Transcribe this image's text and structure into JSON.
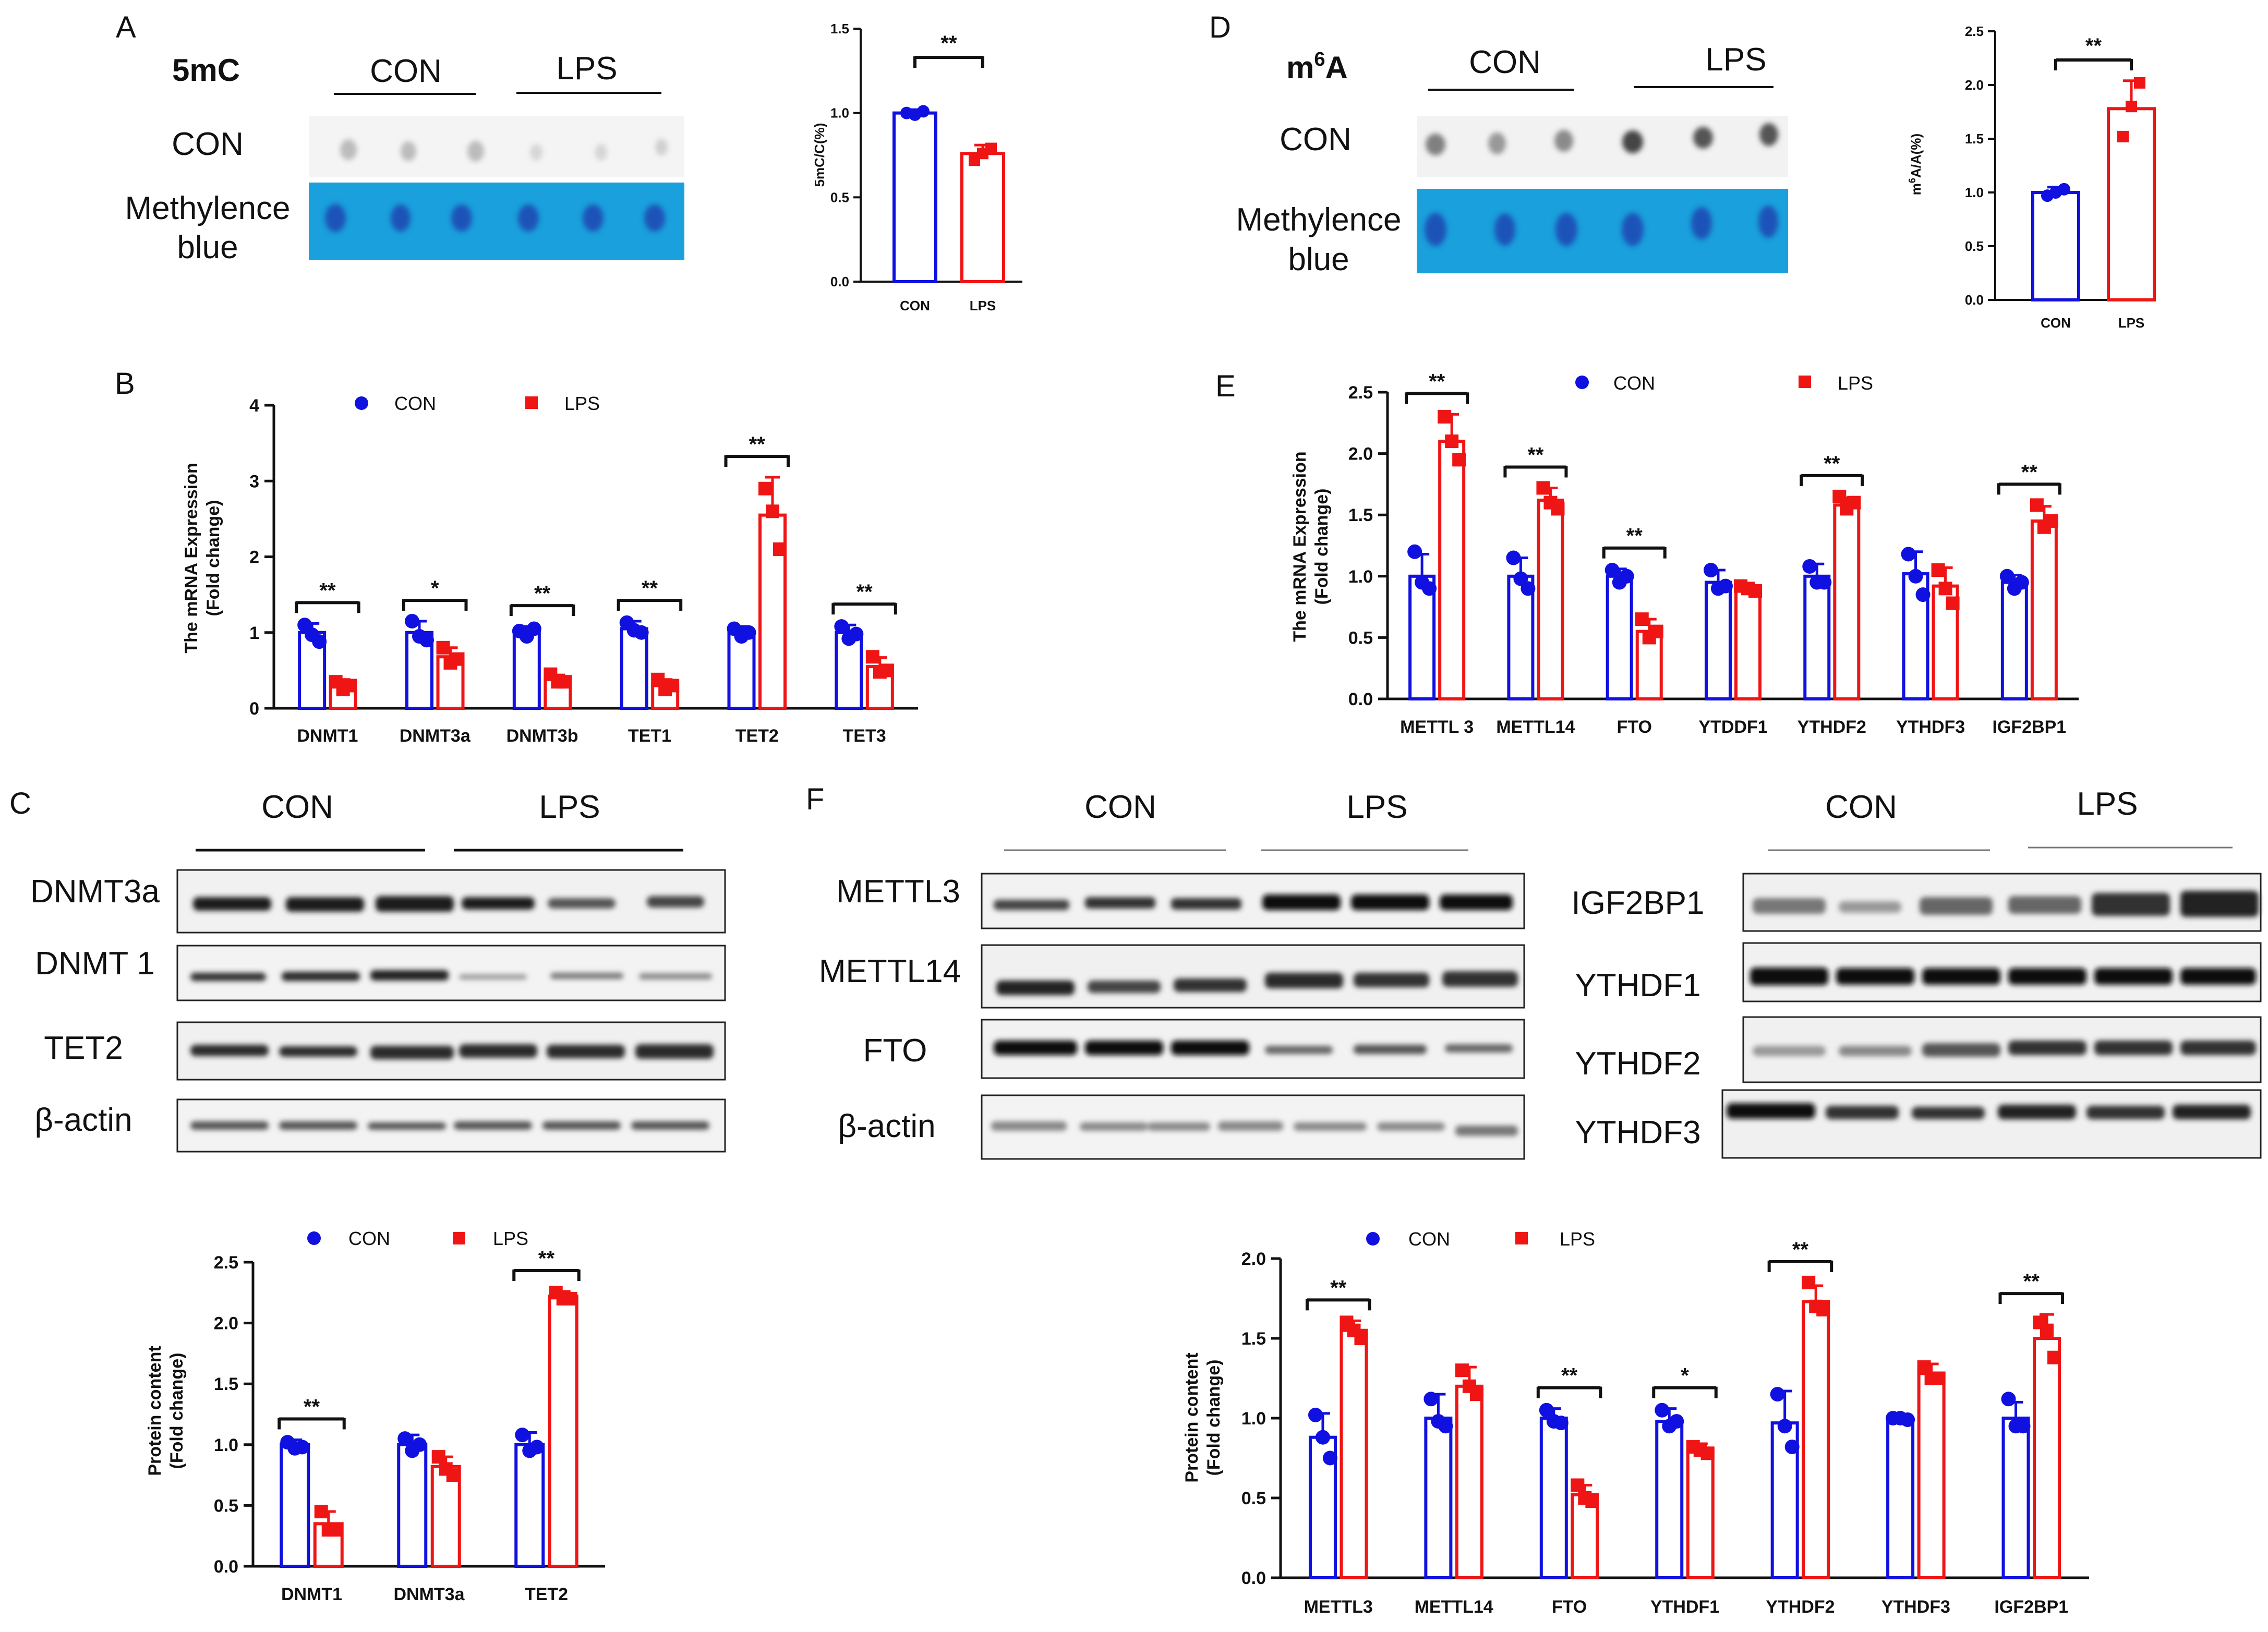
{
  "colors": {
    "con": "#1010e0",
    "lps": "#f01515",
    "methylene": "#1aa0dc",
    "axis": "#111111"
  },
  "panels": {
    "A": {
      "letter": "A",
      "mark": "5mC",
      "group_con": "CON",
      "group_lps": "LPS",
      "row1": "CON",
      "row2a": "Methylence",
      "row2b": "blue"
    },
    "D": {
      "letter": "D",
      "mark_base": "m",
      "mark_sup": "6",
      "mark_end": "A",
      "group_con": "CON",
      "group_lps": "LPS",
      "row1": "CON",
      "row2a": "Methylence",
      "row2b": "blue"
    },
    "B": {
      "letter": "B"
    },
    "E": {
      "letter": "E"
    },
    "C": {
      "letter": "C",
      "group_con": "CON",
      "group_lps": "LPS",
      "rows": [
        "DNMT3a",
        "DNMT 1",
        "TET2",
        "β-actin"
      ]
    },
    "F": {
      "letter": "F",
      "group_con": "CON",
      "group_lps": "LPS",
      "rows_left": [
        "METTL3",
        "METTL14",
        "FTO",
        "β-actin"
      ],
      "group_con_r": "CON",
      "group_lps_r": "LPS",
      "rows_right": [
        "IGF2BP1",
        "YTHDF1",
        "YTHDF2",
        "YTHDF3"
      ]
    }
  },
  "legend": {
    "con": "CON",
    "lps": "LPS"
  },
  "chart_data": [
    {
      "id": "A-bar",
      "type": "bar",
      "title": "",
      "ylabel": "5mC/C(%)",
      "xlabel": "",
      "ylim": [
        0,
        1.5
      ],
      "yticks": [
        "0.0",
        "0.5",
        "1.0",
        "1.5"
      ],
      "yticks_val": [
        0,
        0.5,
        1.0,
        1.5
      ],
      "categories": [
        "CON",
        "LPS"
      ],
      "values": [
        1.0,
        0.76
      ],
      "errors": [
        0.02,
        0.05
      ],
      "points": [
        [
          1.0,
          0.99,
          1.01
        ],
        [
          0.72,
          0.76,
          0.79
        ]
      ],
      "sig": [
        {
          "label": "**",
          "from": 0,
          "to": 1
        }
      ]
    },
    {
      "id": "D-bar",
      "type": "bar",
      "title": "",
      "ylabel": "m6A/A(%)",
      "xlabel": "",
      "ylim": [
        0,
        2.5
      ],
      "yticks": [
        "0.0",
        "0.5",
        "1.0",
        "1.5",
        "2.0",
        "2.5"
      ],
      "yticks_val": [
        0,
        0.5,
        1.0,
        1.5,
        2.0,
        2.5
      ],
      "categories": [
        "CON",
        "LPS"
      ],
      "values": [
        1.0,
        1.78
      ],
      "errors": [
        0.05,
        0.26
      ],
      "points": [
        [
          0.97,
          1.0,
          1.03
        ],
        [
          1.52,
          1.8,
          2.02
        ]
      ],
      "sig": [
        {
          "label": "**",
          "from": 0,
          "to": 1
        }
      ]
    },
    {
      "id": "B-chart",
      "type": "bar",
      "title": "",
      "ylabel": "The mRNA Expression (Fold change)",
      "xlabel": "",
      "ylim": [
        0,
        4
      ],
      "yticks": [
        "0",
        "1",
        "2",
        "3",
        "4"
      ],
      "yticks_val": [
        0,
        1,
        2,
        3,
        4
      ],
      "categories": [
        "DNMT1",
        "DNMT3a",
        "DNMT3b",
        "TET1",
        "TET2",
        "TET3"
      ],
      "series": [
        {
          "name": "CON",
          "values": [
            1.0,
            1.0,
            1.0,
            1.05,
            1.0,
            1.0
          ],
          "errors": [
            0.12,
            0.15,
            0.08,
            0.1,
            0.08,
            0.1
          ],
          "points": [
            [
              1.1,
              0.97,
              0.88
            ],
            [
              1.15,
              0.95,
              0.9
            ],
            [
              1.02,
              0.95,
              1.05
            ],
            [
              1.13,
              1.03,
              1.0
            ],
            [
              1.05,
              0.95,
              1.0
            ],
            [
              1.08,
              0.92,
              0.98
            ]
          ]
        },
        {
          "name": "LPS",
          "values": [
            0.3,
            0.68,
            0.38,
            0.3,
            2.55,
            0.55
          ],
          "errors": [
            0.08,
            0.12,
            0.06,
            0.08,
            0.5,
            0.12
          ],
          "points": [
            [
              0.35,
              0.25,
              0.3
            ],
            [
              0.8,
              0.6,
              0.65
            ],
            [
              0.45,
              0.35,
              0.35
            ],
            [
              0.38,
              0.25,
              0.3
            ],
            [
              2.9,
              2.6,
              2.1
            ],
            [
              0.68,
              0.48,
              0.5
            ]
          ]
        }
      ],
      "sig": [
        {
          "label": "**",
          "cat": 0
        },
        {
          "label": "*",
          "cat": 1
        },
        {
          "label": "**",
          "cat": 2
        },
        {
          "label": "**",
          "cat": 3
        },
        {
          "label": "**",
          "cat": 4
        },
        {
          "label": "**",
          "cat": 5
        }
      ]
    },
    {
      "id": "E-chart",
      "type": "bar",
      "title": "",
      "ylabel": "The mRNA Expression (Fold change)",
      "xlabel": "",
      "ylim": [
        0,
        2.5
      ],
      "yticks": [
        "0.0",
        "0.5",
        "1.0",
        "1.5",
        "2.0",
        "2.5"
      ],
      "yticks_val": [
        0,
        0.5,
        1.0,
        1.5,
        2.0,
        2.5
      ],
      "categories": [
        "METTL 3",
        "METTL14",
        "FTO",
        "YTDDF1",
        "YTHDF2",
        "YTHDF3",
        "IGF2BP1"
      ],
      "series": [
        {
          "name": "CON",
          "values": [
            1.0,
            1.0,
            1.0,
            0.95,
            1.0,
            1.02,
            0.95
          ],
          "errors": [
            0.18,
            0.15,
            0.06,
            0.1,
            0.1,
            0.18,
            0.06
          ],
          "points": [
            [
              1.2,
              0.95,
              0.9
            ],
            [
              1.15,
              0.98,
              0.9
            ],
            [
              1.05,
              0.95,
              1.0
            ],
            [
              1.05,
              0.9,
              0.92
            ],
            [
              1.08,
              0.95,
              0.95
            ],
            [
              1.18,
              1.0,
              0.85
            ],
            [
              1.0,
              0.9,
              0.95
            ]
          ]
        },
        {
          "name": "LPS",
          "values": [
            2.1,
            1.62,
            0.55,
            0.9,
            1.58,
            0.92,
            1.45
          ],
          "errors": [
            0.22,
            0.1,
            0.1,
            0.03,
            0.06,
            0.15,
            0.12
          ],
          "points": [
            [
              2.3,
              2.1,
              1.95
            ],
            [
              1.72,
              1.6,
              1.55
            ],
            [
              0.65,
              0.5,
              0.55
            ],
            [
              0.92,
              0.9,
              0.88
            ],
            [
              1.65,
              1.55,
              1.6
            ],
            [
              1.05,
              0.9,
              0.78
            ],
            [
              1.58,
              1.4,
              1.45
            ]
          ]
        }
      ],
      "sig": [
        {
          "label": "**",
          "cat": 0
        },
        {
          "label": "**",
          "cat": 1
        },
        {
          "label": "**",
          "cat": 2
        },
        {
          "label": "**",
          "cat": 4
        },
        {
          "label": "**",
          "cat": 6
        }
      ]
    },
    {
      "id": "C-chart",
      "type": "bar",
      "title": "",
      "ylabel": "Protein content (Fold change)",
      "xlabel": "",
      "ylim": [
        0,
        2.5
      ],
      "yticks": [
        "0.0",
        "0.5",
        "1.0",
        "1.5",
        "2.0",
        "2.5"
      ],
      "yticks_val": [
        0,
        0.5,
        1.0,
        1.5,
        2.0,
        2.5
      ],
      "categories": [
        "DNMT1",
        "DNMT3a",
        "TET2"
      ],
      "series": [
        {
          "name": "CON",
          "values": [
            1.0,
            1.0,
            1.0
          ],
          "errors": [
            0.04,
            0.08,
            0.1
          ],
          "points": [
            [
              1.02,
              0.97,
              0.98
            ],
            [
              1.05,
              0.95,
              1.0
            ],
            [
              1.08,
              0.95,
              0.98
            ]
          ]
        },
        {
          "name": "LPS",
          "values": [
            0.35,
            0.82,
            2.22
          ],
          "errors": [
            0.1,
            0.08,
            0.04
          ],
          "points": [
            [
              0.45,
              0.3,
              0.3
            ],
            [
              0.9,
              0.8,
              0.75
            ],
            [
              2.25,
              2.2,
              2.2
            ]
          ]
        }
      ],
      "sig": [
        {
          "label": "**",
          "cat": 0
        },
        {
          "label": "**",
          "cat": 2
        }
      ]
    },
    {
      "id": "F-chart",
      "type": "bar",
      "title": "",
      "ylabel": "Protein content (Fold change)",
      "xlabel": "",
      "ylim": [
        0,
        2.0
      ],
      "yticks": [
        "0.0",
        "0.5",
        "1.0",
        "1.5",
        "2.0"
      ],
      "yticks_val": [
        0,
        0.5,
        1.0,
        1.5,
        2.0
      ],
      "categories": [
        "METTL3",
        "METTL14",
        "FTO",
        "YTHDF1",
        "YTHDF2",
        "YTHDF3",
        "IGF2BP1"
      ],
      "series": [
        {
          "name": "CON",
          "values": [
            0.88,
            1.0,
            1.0,
            0.98,
            0.97,
            1.0,
            1.0
          ],
          "errors": [
            0.15,
            0.15,
            0.06,
            0.08,
            0.2,
            0.01,
            0.1
          ],
          "points": [
            [
              1.02,
              0.88,
              0.75
            ],
            [
              1.12,
              0.98,
              0.95
            ],
            [
              1.05,
              0.98,
              0.97
            ],
            [
              1.05,
              0.95,
              0.98
            ],
            [
              1.15,
              0.95,
              0.82
            ],
            [
              1.0,
              1.0,
              0.99
            ],
            [
              1.12,
              0.95,
              0.95
            ]
          ]
        },
        {
          "name": "LPS",
          "values": [
            1.55,
            1.2,
            0.52,
            0.8,
            1.73,
            1.28,
            1.5
          ],
          "errors": [
            0.06,
            0.12,
            0.06,
            0.04,
            0.1,
            0.06,
            0.15
          ],
          "points": [
            [
              1.6,
              1.55,
              1.5
            ],
            [
              1.3,
              1.2,
              1.15
            ],
            [
              0.58,
              0.5,
              0.48
            ],
            [
              0.82,
              0.8,
              0.78
            ],
            [
              1.85,
              1.7,
              1.68
            ],
            [
              1.32,
              1.25,
              1.25
            ],
            [
              1.6,
              1.55,
              1.38
            ]
          ]
        }
      ],
      "sig": [
        {
          "label": "**",
          "cat": 0
        },
        {
          "label": "**",
          "cat": 2
        },
        {
          "label": "*",
          "cat": 3
        },
        {
          "label": "**",
          "cat": 4
        },
        {
          "label": "**",
          "cat": 6
        }
      ]
    }
  ]
}
